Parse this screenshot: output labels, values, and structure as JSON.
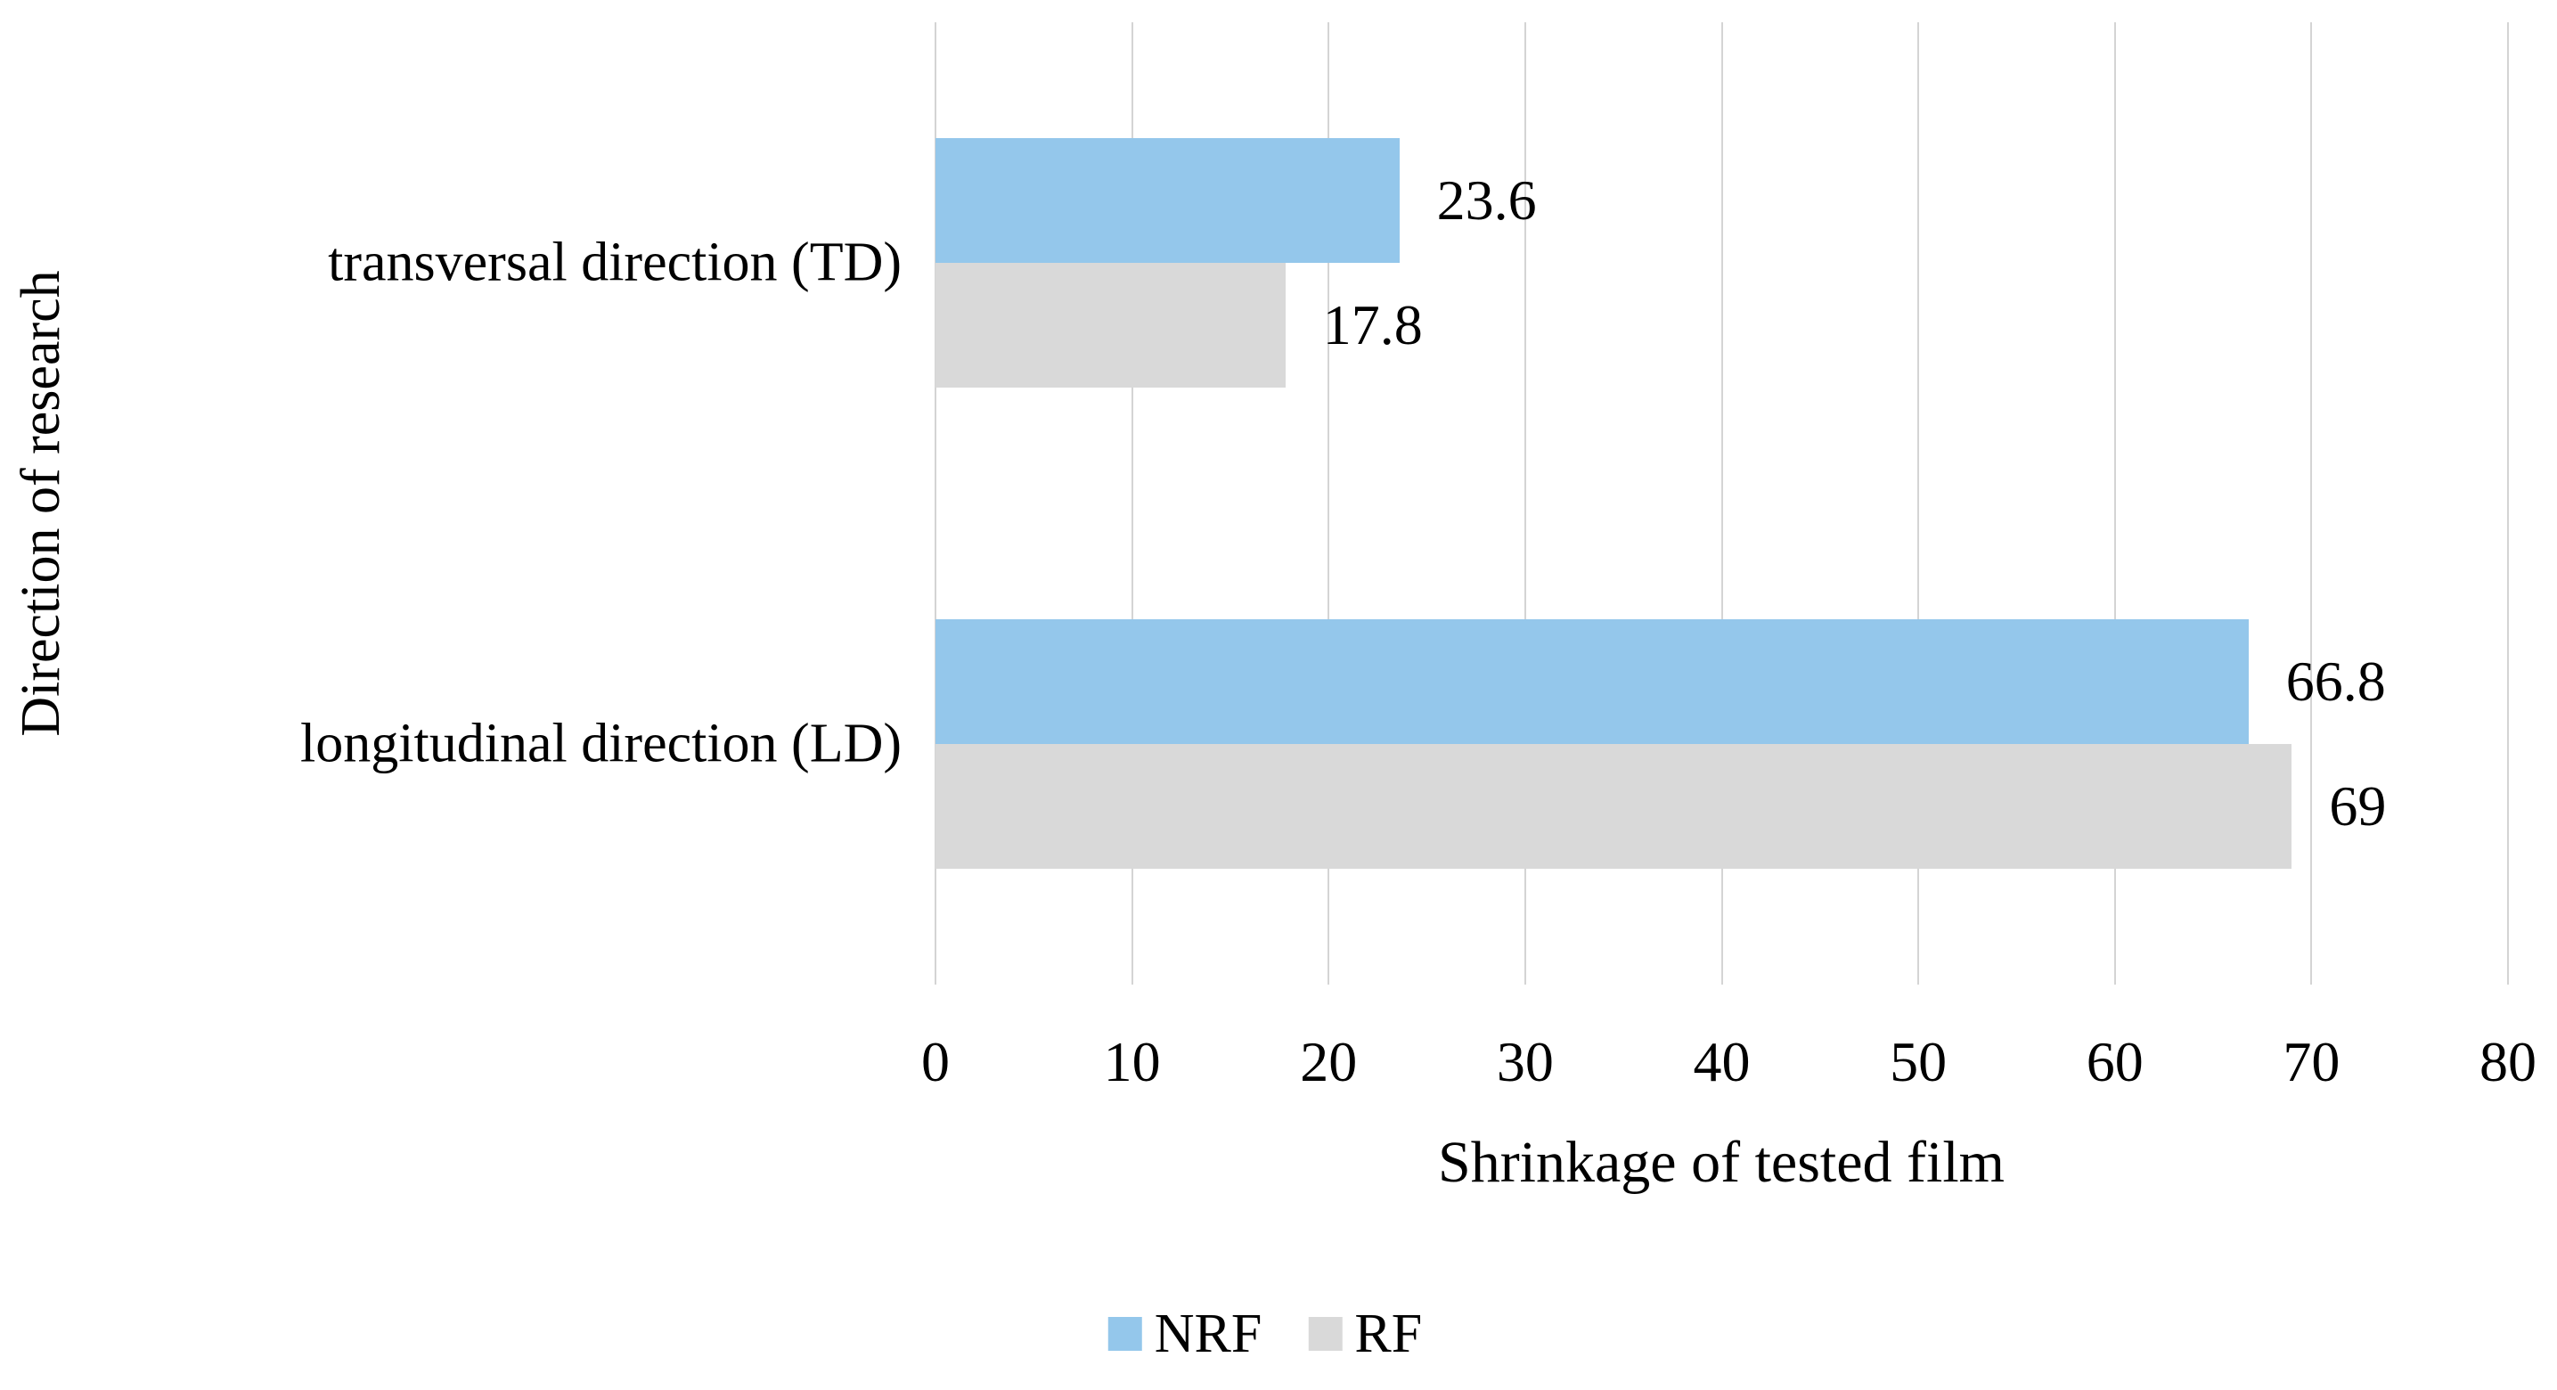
{
  "figure": {
    "background": "#ffffff",
    "text_color": "#000000",
    "gridline_color": "#d4d4d4"
  },
  "chart_data": {
    "type": "bar",
    "orientation": "horizontal",
    "xlabel": "Shrinkage of tested film",
    "ylabel": "Direction of research",
    "categories": [
      "transversal direction (TD)",
      "longitudinal direction (LD)"
    ],
    "series": [
      {
        "name": "NRF",
        "color": "#94c7eb",
        "values": [
          23.6,
          66.8
        ],
        "labels": [
          "23.6",
          "66.8"
        ]
      },
      {
        "name": "RF",
        "color": "#d9d9d9",
        "values": [
          17.8,
          69
        ],
        "labels": [
          "17.8",
          "69"
        ]
      }
    ],
    "xlim": [
      0,
      80
    ],
    "xticks": [
      0,
      10,
      20,
      30,
      40,
      50,
      60,
      70,
      80
    ],
    "grid": true,
    "data_labels": true,
    "legend_position": "bottom"
  }
}
